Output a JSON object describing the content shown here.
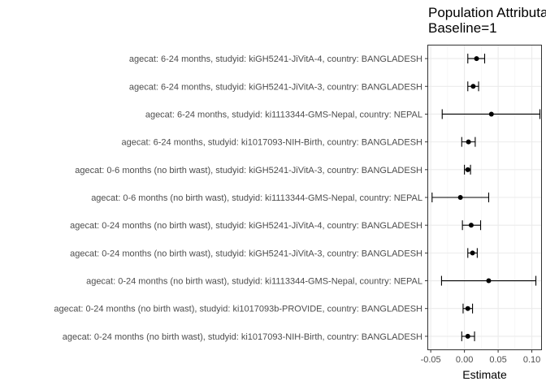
{
  "chart_data": {
    "type": "forest",
    "title_lines": [
      "Population Attributable Fraction",
      "Baseline=1"
    ],
    "xlabel": "Estimate",
    "ylabel": "",
    "xlim": [
      -0.055,
      0.115
    ],
    "xticks": [
      -0.05,
      0.0,
      0.05,
      0.1
    ],
    "xtick_labels": [
      "-0.05",
      "0.00",
      "0.05",
      "0.10"
    ],
    "grid": true,
    "rows": [
      {
        "label": "agecat: 6-24 months, studyid: kiGH5241-JiVitA-4, country: BANGLADESH",
        "estimate": 0.018,
        "lower": 0.005,
        "upper": 0.03
      },
      {
        "label": "agecat: 6-24 months, studyid: kiGH5241-JiVitA-3, country: BANGLADESH",
        "estimate": 0.013,
        "lower": 0.005,
        "upper": 0.021
      },
      {
        "label": "agecat: 6-24 months, studyid: ki1113344-GMS-Nepal, country: NEPAL",
        "estimate": 0.04,
        "lower": -0.033,
        "upper": 0.112
      },
      {
        "label": "agecat: 6-24 months, studyid: ki1017093-NIH-Birth, country: BANGLADESH",
        "estimate": 0.006,
        "lower": -0.004,
        "upper": 0.016
      },
      {
        "label": "agecat: 0-6 months (no birth wast), studyid: kiGH5241-JiVitA-3, country: BANGLADESH",
        "estimate": 0.005,
        "lower": 0.0,
        "upper": 0.009
      },
      {
        "label": "agecat: 0-6 months (no birth wast), studyid: ki1113344-GMS-Nepal, country: NEPAL",
        "estimate": -0.006,
        "lower": -0.048,
        "upper": 0.036
      },
      {
        "label": "agecat: 0-24 months (no birth wast), studyid: kiGH5241-JiVitA-4, country: BANGLADESH",
        "estimate": 0.01,
        "lower": -0.003,
        "upper": 0.024
      },
      {
        "label": "agecat: 0-24 months (no birth wast), studyid: kiGH5241-JiVitA-3, country: BANGLADESH",
        "estimate": 0.012,
        "lower": 0.005,
        "upper": 0.019
      },
      {
        "label": "agecat: 0-24 months (no birth wast), studyid: ki1113344-GMS-Nepal, country: NEPAL",
        "estimate": 0.036,
        "lower": -0.034,
        "upper": 0.106
      },
      {
        "label": "agecat: 0-24 months (no birth wast), studyid: ki1017093b-PROVIDE, country: BANGLADESH",
        "estimate": 0.005,
        "lower": -0.002,
        "upper": 0.012
      },
      {
        "label": "agecat: 0-24 months (no birth wast), studyid: ki1017093-NIH-Birth, country: BANGLADESH",
        "estimate": 0.005,
        "lower": -0.004,
        "upper": 0.015
      }
    ]
  }
}
